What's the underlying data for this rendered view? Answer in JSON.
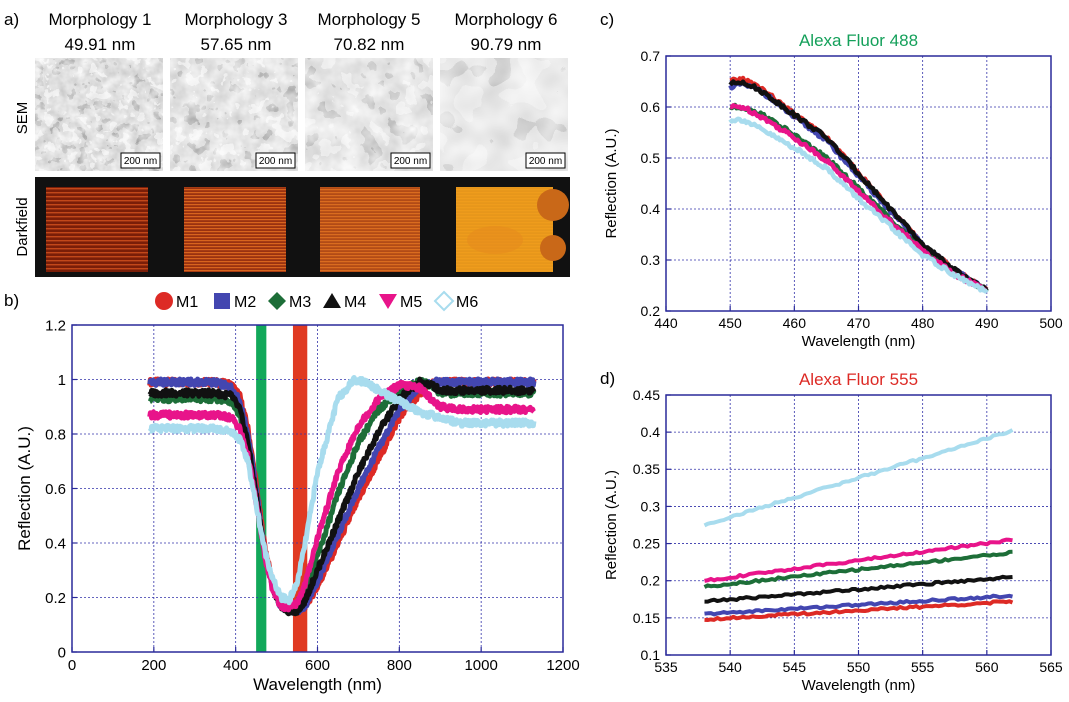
{
  "panel_a": {
    "label": "a)",
    "columns": [
      {
        "name": "Morphology 1",
        "size": "49.91 nm",
        "scale": "200 nm"
      },
      {
        "name": "Morphology 3",
        "size": "57.65 nm",
        "scale": "200 nm"
      },
      {
        "name": "Morphology 5",
        "size": "70.82 nm",
        "scale": "200 nm"
      },
      {
        "name": "Morphology 6",
        "size": "90.79 nm",
        "scale": "200 nm"
      }
    ],
    "row_labels": {
      "sem": "SEM",
      "darkfield": "Darkfield"
    }
  },
  "colors": {
    "M1": "#dd2a25",
    "M2": "#4346b0",
    "M3": "#1d6e38",
    "M4": "#111111",
    "M5": "#e8148a",
    "M6": "#a8dcee",
    "green_band": "#12a85a",
    "red_band": "#e03a22",
    "frame": "#2a2a9a",
    "grid": "#3333aa",
    "title_488": "#14a05a",
    "title_555": "#dd2a25"
  },
  "chart_data": [
    {
      "id": "b",
      "panel_label": "b)",
      "type": "line",
      "xlabel": "Wavelength (nm)",
      "ylabel": "Reflection (A.U.)",
      "xlim": [
        0,
        1200
      ],
      "ylim": [
        0,
        1.2
      ],
      "xticks": [
        0,
        200,
        400,
        600,
        800,
        1000,
        1200
      ],
      "yticks": [
        0,
        0.2,
        0.4,
        0.6,
        0.8,
        1,
        1.2
      ],
      "ytick_labels": [
        "0",
        "0.2",
        "0.4",
        "0.6",
        "0.8",
        "1",
        "1.2"
      ],
      "grid": true,
      "legend": {
        "placement": "top",
        "entries": [
          "M1",
          "M2",
          "M3",
          "M4",
          "M5",
          "M6"
        ]
      },
      "bands": [
        {
          "color_key": "green_band",
          "x": [
            450,
            475
          ]
        },
        {
          "color_key": "red_band",
          "x": [
            540,
            575
          ]
        }
      ],
      "series": [
        {
          "name": "M1",
          "x": [
            190,
            250,
            300,
            350,
            390,
            410,
            430,
            450,
            470,
            490,
            510,
            530,
            550,
            570,
            600,
            650,
            700,
            750,
            800,
            850,
            870,
            900,
            950,
            1000,
            1050,
            1130
          ],
          "y": [
            0.99,
            0.99,
            0.99,
            0.99,
            0.98,
            0.94,
            0.82,
            0.62,
            0.4,
            0.25,
            0.18,
            0.15,
            0.15,
            0.17,
            0.24,
            0.4,
            0.56,
            0.71,
            0.86,
            0.95,
            0.98,
            0.99,
            0.99,
            0.99,
            0.99,
            0.99
          ]
        },
        {
          "name": "M2",
          "x": [
            190,
            250,
            300,
            350,
            390,
            410,
            430,
            450,
            470,
            490,
            510,
            530,
            550,
            570,
            600,
            650,
            700,
            750,
            800,
            850,
            870,
            900,
            950,
            1000,
            1050,
            1130
          ],
          "y": [
            0.99,
            0.99,
            0.99,
            0.99,
            0.97,
            0.92,
            0.8,
            0.6,
            0.38,
            0.24,
            0.17,
            0.15,
            0.15,
            0.17,
            0.26,
            0.43,
            0.6,
            0.75,
            0.89,
            0.97,
            0.99,
            0.99,
            0.99,
            0.99,
            0.99,
            0.99
          ]
        },
        {
          "name": "M3",
          "x": [
            190,
            250,
            300,
            350,
            390,
            410,
            430,
            450,
            470,
            490,
            510,
            530,
            550,
            570,
            600,
            650,
            700,
            750,
            800,
            850,
            880,
            900,
            950,
            1000,
            1050,
            1130
          ],
          "y": [
            0.93,
            0.93,
            0.93,
            0.93,
            0.92,
            0.87,
            0.76,
            0.57,
            0.37,
            0.24,
            0.17,
            0.15,
            0.16,
            0.21,
            0.35,
            0.58,
            0.77,
            0.89,
            0.96,
            0.99,
            0.98,
            0.95,
            0.95,
            0.95,
            0.95,
            0.95
          ]
        },
        {
          "name": "M4",
          "x": [
            190,
            250,
            300,
            350,
            390,
            410,
            430,
            450,
            470,
            490,
            510,
            530,
            550,
            570,
            600,
            650,
            700,
            750,
            800,
            850,
            880,
            900,
            950,
            1000,
            1050,
            1130
          ],
          "y": [
            0.95,
            0.95,
            0.95,
            0.95,
            0.94,
            0.89,
            0.77,
            0.58,
            0.37,
            0.24,
            0.17,
            0.15,
            0.15,
            0.19,
            0.3,
            0.48,
            0.66,
            0.81,
            0.93,
            0.99,
            0.98,
            0.96,
            0.96,
            0.96,
            0.96,
            0.96
          ]
        },
        {
          "name": "M5",
          "x": [
            190,
            250,
            300,
            350,
            390,
            410,
            430,
            450,
            470,
            490,
            510,
            530,
            550,
            570,
            600,
            650,
            700,
            750,
            800,
            850,
            870,
            900,
            950,
            1000,
            1050,
            1130
          ],
          "y": [
            0.87,
            0.87,
            0.87,
            0.87,
            0.86,
            0.82,
            0.72,
            0.55,
            0.36,
            0.23,
            0.17,
            0.16,
            0.18,
            0.25,
            0.42,
            0.66,
            0.83,
            0.93,
            0.98,
            0.97,
            0.94,
            0.9,
            0.89,
            0.89,
            0.89,
            0.89
          ]
        },
        {
          "name": "M6",
          "x": [
            190,
            250,
            300,
            350,
            390,
            410,
            430,
            450,
            470,
            490,
            510,
            530,
            550,
            570,
            600,
            650,
            690,
            720,
            750,
            800,
            850,
            900,
            950,
            1000,
            1050,
            1130
          ],
          "y": [
            0.82,
            0.82,
            0.82,
            0.82,
            0.81,
            0.78,
            0.7,
            0.54,
            0.38,
            0.27,
            0.2,
            0.19,
            0.25,
            0.4,
            0.66,
            0.93,
            1.0,
            0.99,
            0.96,
            0.92,
            0.88,
            0.86,
            0.84,
            0.84,
            0.84,
            0.84
          ]
        }
      ]
    },
    {
      "id": "c",
      "panel_label": "c)",
      "type": "line",
      "title": "Alexa Fluor 488",
      "xlabel": "Wavelength (nm)",
      "ylabel": "Reflection (A.U.)",
      "xlim": [
        440,
        500
      ],
      "ylim": [
        0.2,
        0.7
      ],
      "xticks": [
        440,
        450,
        460,
        470,
        480,
        490,
        500
      ],
      "yticks": [
        0.2,
        0.3,
        0.4,
        0.5,
        0.6,
        0.7
      ],
      "ytick_labels": [
        "0.2",
        "0.3",
        "0.4",
        "0.5",
        "0.6",
        "0.7"
      ],
      "grid": true,
      "series": [
        {
          "name": "M1",
          "x": [
            450,
            452,
            455,
            460,
            465,
            470,
            475,
            480,
            485,
            490
          ],
          "y": [
            0.65,
            0.655,
            0.635,
            0.585,
            0.54,
            0.47,
            0.4,
            0.33,
            0.28,
            0.24
          ]
        },
        {
          "name": "M2",
          "x": [
            450,
            452,
            455,
            460,
            465,
            470,
            475,
            480,
            485,
            490
          ],
          "y": [
            0.64,
            0.645,
            0.63,
            0.58,
            0.535,
            0.465,
            0.395,
            0.33,
            0.28,
            0.24
          ]
        },
        {
          "name": "M3",
          "x": [
            450,
            452,
            455,
            460,
            465,
            470,
            475,
            480,
            485,
            490
          ],
          "y": [
            0.6,
            0.6,
            0.585,
            0.545,
            0.5,
            0.44,
            0.38,
            0.32,
            0.275,
            0.24
          ]
        },
        {
          "name": "M4",
          "x": [
            450,
            452,
            455,
            460,
            465,
            470,
            475,
            480,
            485,
            490
          ],
          "y": [
            0.645,
            0.65,
            0.63,
            0.585,
            0.54,
            0.47,
            0.4,
            0.33,
            0.28,
            0.24
          ]
        },
        {
          "name": "M5",
          "x": [
            450,
            452,
            455,
            460,
            465,
            470,
            475,
            480,
            485,
            490
          ],
          "y": [
            0.6,
            0.6,
            0.58,
            0.54,
            0.495,
            0.435,
            0.375,
            0.318,
            0.272,
            0.24
          ]
        },
        {
          "name": "M6",
          "x": [
            450,
            452,
            455,
            460,
            465,
            470,
            475,
            480,
            485,
            490
          ],
          "y": [
            0.575,
            0.575,
            0.555,
            0.52,
            0.48,
            0.42,
            0.365,
            0.31,
            0.27,
            0.237
          ]
        }
      ]
    },
    {
      "id": "d",
      "panel_label": "d)",
      "type": "line",
      "title": "Alexa Fluor 555",
      "xlabel": "Wavelength (nm)",
      "ylabel": "Reflection (A.U.)",
      "xlim": [
        535,
        565
      ],
      "ylim": [
        0.1,
        0.45
      ],
      "xticks": [
        535,
        540,
        545,
        550,
        555,
        560,
        565
      ],
      "yticks": [
        0.1,
        0.15,
        0.2,
        0.25,
        0.3,
        0.35,
        0.4,
        0.45
      ],
      "ytick_labels": [
        "0.1",
        "0.15",
        "0.2",
        "0.25",
        "0.3",
        "0.35",
        "0.4",
        "0.45"
      ],
      "grid": true,
      "series": [
        {
          "name": "M1",
          "x": [
            538,
            562
          ],
          "y": [
            0.148,
            0.172
          ]
        },
        {
          "name": "M2",
          "x": [
            538,
            562
          ],
          "y": [
            0.155,
            0.18
          ]
        },
        {
          "name": "M3",
          "x": [
            538,
            562
          ],
          "y": [
            0.192,
            0.238
          ]
        },
        {
          "name": "M4",
          "x": [
            538,
            562
          ],
          "y": [
            0.172,
            0.205
          ]
        },
        {
          "name": "M5",
          "x": [
            538,
            562
          ],
          "y": [
            0.2,
            0.255
          ]
        },
        {
          "name": "M6",
          "x": [
            538,
            562
          ],
          "y": [
            0.275,
            0.402
          ]
        }
      ]
    }
  ]
}
